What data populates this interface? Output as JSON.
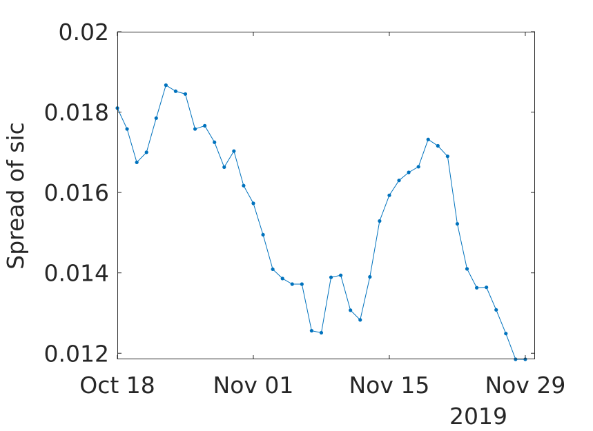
{
  "chart_data": {
    "type": "line",
    "title": "",
    "xlabel": "",
    "ylabel": "Spread of sic",
    "year_label": "2019",
    "grid": false,
    "legend": "none",
    "line_color": "#0072bd",
    "xlim": [
      "2019-10-18",
      "2019-11-30"
    ],
    "ylim": [
      0.01185,
      0.02
    ],
    "x_ticks": [
      {
        "date": "2019-10-18",
        "label": "Oct 18"
      },
      {
        "date": "2019-11-01",
        "label": "Nov 01"
      },
      {
        "date": "2019-11-15",
        "label": "Nov 15"
      },
      {
        "date": "2019-11-29",
        "label": "Nov 29"
      }
    ],
    "y_ticks": [
      {
        "value": 0.012,
        "label": "0.012"
      },
      {
        "value": 0.014,
        "label": "0.014"
      },
      {
        "value": 0.016,
        "label": "0.016"
      },
      {
        "value": 0.018,
        "label": "0.018"
      },
      {
        "value": 0.02,
        "label": "0.02"
      }
    ],
    "series": [
      {
        "x": [
          "2019-10-18",
          "2019-10-19",
          "2019-10-20",
          "2019-10-21",
          "2019-10-22",
          "2019-10-23",
          "2019-10-24",
          "2019-10-25",
          "2019-10-26",
          "2019-10-27",
          "2019-10-28",
          "2019-10-29",
          "2019-10-30",
          "2019-10-31",
          "2019-11-01",
          "2019-11-02",
          "2019-11-03",
          "2019-11-04",
          "2019-11-05",
          "2019-11-06",
          "2019-11-07",
          "2019-11-08",
          "2019-11-09",
          "2019-11-10",
          "2019-11-11",
          "2019-11-12",
          "2019-11-13",
          "2019-11-14",
          "2019-11-15",
          "2019-11-16",
          "2019-11-17",
          "2019-11-18",
          "2019-11-19",
          "2019-11-20",
          "2019-11-21",
          "2019-11-22",
          "2019-11-23",
          "2019-11-24",
          "2019-11-25",
          "2019-11-26",
          "2019-11-27",
          "2019-11-28",
          "2019-11-29"
        ],
        "values": [
          0.0181,
          0.01758,
          0.01675,
          0.017,
          0.01785,
          0.01867,
          0.01852,
          0.01845,
          0.01758,
          0.01766,
          0.01725,
          0.01663,
          0.01703,
          0.01617,
          0.01573,
          0.01495,
          0.01409,
          0.01386,
          0.01372,
          0.01372,
          0.01256,
          0.01251,
          0.01389,
          0.01394,
          0.01307,
          0.01283,
          0.0139,
          0.01529,
          0.01593,
          0.0163,
          0.0165,
          0.01664,
          0.01732,
          0.01716,
          0.0169,
          0.01522,
          0.0141,
          0.01363,
          0.01364,
          0.01308,
          0.01249,
          0.01185,
          0.01185
        ]
      }
    ]
  }
}
